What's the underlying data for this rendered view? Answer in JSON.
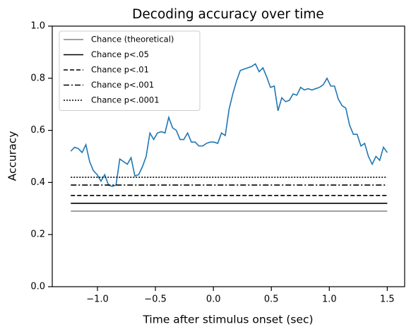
{
  "chart_data": {
    "type": "line",
    "title": "Decoding accuracy over time",
    "xlabel": "Time after stimulus onset (sec)",
    "ylabel": "Accuracy",
    "xlim": [
      -1.39,
      1.65
    ],
    "ylim": [
      0,
      1
    ],
    "xticks": [
      {
        "value": -1.0,
        "label": "−1.0"
      },
      {
        "value": -0.5,
        "label": "−0.5"
      },
      {
        "value": 0.0,
        "label": "0.0"
      },
      {
        "value": 0.5,
        "label": "0.5"
      },
      {
        "value": 1.0,
        "label": "1.0"
      },
      {
        "value": 1.5,
        "label": "1.5"
      }
    ],
    "yticks": [
      {
        "value": 0,
        "label": "0.0"
      },
      {
        "value": 0.2,
        "label": "0.2"
      },
      {
        "value": 0.4,
        "label": "0.4"
      },
      {
        "value": 0.6,
        "label": "0.6"
      },
      {
        "value": 0.8,
        "label": "0.8"
      },
      {
        "value": 1,
        "label": "1.0"
      }
    ],
    "legend": "upper left",
    "series": [
      {
        "color": "#1f77b4",
        "dash": "solid",
        "x": [
          -1.23,
          -1.1975,
          -1.165,
          -1.1325,
          -1.1,
          -1.0675,
          -1.035,
          -1.0025,
          -0.97,
          -0.9375,
          -0.905,
          -0.8725,
          -0.84,
          -0.8075,
          -0.775,
          -0.7425,
          -0.71,
          -0.6775,
          -0.645,
          -0.6125,
          -0.58,
          -0.5475,
          -0.515,
          -0.4825,
          -0.45,
          -0.4175,
          -0.385,
          -0.3525,
          -0.32,
          -0.2875,
          -0.255,
          -0.2225,
          -0.19,
          -0.1575,
          -0.125,
          -0.0925,
          -0.06,
          -0.0275,
          0.005,
          0.0375,
          0.07,
          0.1025,
          0.135,
          0.1675,
          0.2,
          0.2325,
          0.265,
          0.2975,
          0.33,
          0.3625,
          0.395,
          0.4275,
          0.46,
          0.4925,
          0.525,
          0.5575,
          0.59,
          0.6225,
          0.655,
          0.6875,
          0.72,
          0.7525,
          0.785,
          0.8175,
          0.85,
          0.8825,
          0.915,
          0.9475,
          0.98,
          1.0125,
          1.045,
          1.0775,
          1.11,
          1.1425,
          1.175,
          1.2075,
          1.24,
          1.2725,
          1.305,
          1.3375,
          1.37,
          1.4025,
          1.435,
          1.4675,
          1.5
        ],
        "values": [
          0.52,
          0.535,
          0.53,
          0.515,
          0.545,
          0.48,
          0.445,
          0.43,
          0.405,
          0.43,
          0.39,
          0.385,
          0.39,
          0.49,
          0.48,
          0.47,
          0.495,
          0.425,
          0.43,
          0.46,
          0.5,
          0.59,
          0.565,
          0.59,
          0.595,
          0.59,
          0.65,
          0.61,
          0.6,
          0.565,
          0.565,
          0.59,
          0.555,
          0.555,
          0.54,
          0.54,
          0.55,
          0.555,
          0.555,
          0.55,
          0.59,
          0.58,
          0.68,
          0.74,
          0.79,
          0.83,
          0.835,
          0.84,
          0.845,
          0.855,
          0.825,
          0.84,
          0.805,
          0.765,
          0.77,
          0.675,
          0.725,
          0.71,
          0.715,
          0.74,
          0.735,
          0.765,
          0.755,
          0.76,
          0.755,
          0.76,
          0.765,
          0.775,
          0.8,
          0.77,
          0.77,
          0.72,
          0.695,
          0.685,
          0.62,
          0.585,
          0.585,
          0.54,
          0.55,
          0.5,
          0.47,
          0.5,
          0.485,
          0.535,
          0.515
        ]
      },
      {
        "name": "Chance (theoretical)",
        "color": "#808080",
        "dash": "solid",
        "x": [
          -1.23,
          1.5
        ],
        "values": [
          0.29,
          0.29
        ]
      },
      {
        "name": "Chance p<.05",
        "color": "#000000",
        "dash": "solid",
        "x": [
          -1.23,
          1.5
        ],
        "values": [
          0.32,
          0.32
        ]
      },
      {
        "name": "Chance p<.01",
        "color": "#000000",
        "dash": "dashed",
        "x": [
          -1.23,
          1.5
        ],
        "values": [
          0.35,
          0.35
        ]
      },
      {
        "name": "Chance p<.001",
        "color": "#000000",
        "dash": "dashdot",
        "x": [
          -1.23,
          1.5
        ],
        "values": [
          0.39,
          0.39
        ]
      },
      {
        "name": "Chance p<.0001",
        "color": "#000000",
        "dash": "dotted",
        "x": [
          -1.23,
          1.5
        ],
        "values": [
          0.42,
          0.42
        ]
      }
    ]
  }
}
